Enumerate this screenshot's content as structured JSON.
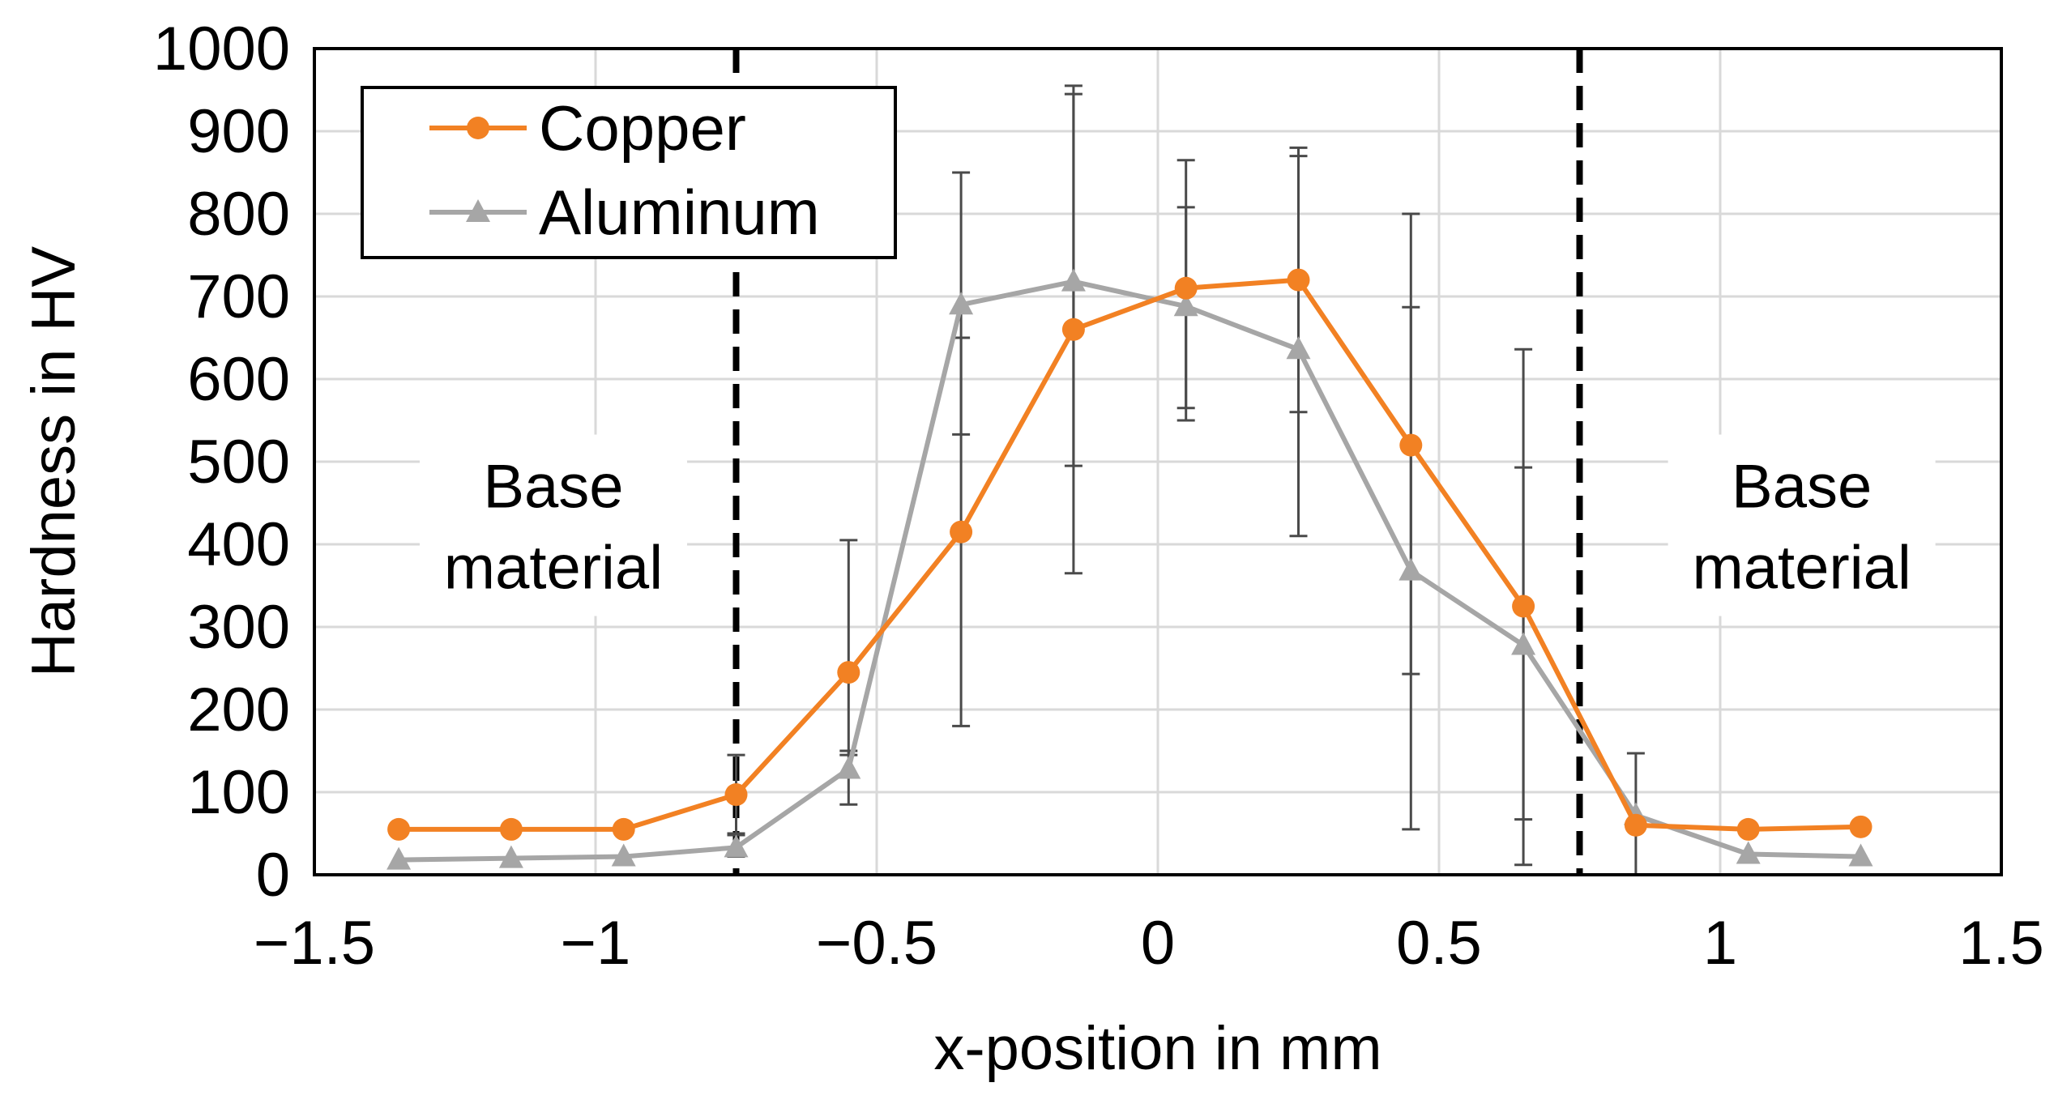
{
  "chart_data": {
    "type": "line",
    "title": "",
    "xlabel": "x-position in mm",
    "ylabel": "Hardness in HV",
    "xlim": [
      -1.5,
      1.5
    ],
    "ylim": [
      0,
      1000
    ],
    "xticks": [
      -1.5,
      -1,
      -0.5,
      0,
      0.5,
      1,
      1.5
    ],
    "xtick_labels": [
      "−1.5",
      "−1",
      "−0.5",
      "0",
      "0.5",
      "1",
      "1.5"
    ],
    "yticks": [
      0,
      100,
      200,
      300,
      400,
      500,
      600,
      700,
      800,
      900,
      1000
    ],
    "ytick_labels": [
      "0",
      "100",
      "200",
      "300",
      "400",
      "500",
      "600",
      "700",
      "800",
      "900",
      "1000"
    ],
    "grid": true,
    "legend_position": "top-left",
    "series": [
      {
        "name": "Copper",
        "color": "#f28123",
        "marker": "circle",
        "x": [
          -1.35,
          -1.15,
          -0.95,
          -0.75,
          -0.55,
          -0.35,
          -0.15,
          0.05,
          0.25,
          0.45,
          0.65,
          0.85,
          1.05,
          1.25
        ],
        "y": [
          55,
          55,
          55,
          97,
          245,
          415,
          660,
          710,
          720,
          520,
          325,
          60,
          55,
          58
        ],
        "err_low": [
          null,
          null,
          null,
          50,
          145,
          180,
          365,
          550,
          410,
          243,
          67,
          null,
          null,
          null
        ],
        "err_high": [
          null,
          null,
          null,
          145,
          405,
          650,
          955,
          865,
          880,
          800,
          493,
          null,
          null,
          null
        ]
      },
      {
        "name": "Aluminum",
        "color": "#a6a6a6",
        "marker": "triangle",
        "x": [
          -1.35,
          -1.15,
          -0.95,
          -0.75,
          -0.55,
          -0.35,
          -0.15,
          0.05,
          0.25,
          0.45,
          0.65,
          0.85,
          1.05,
          1.25
        ],
        "y": [
          18,
          20,
          22,
          33,
          128,
          690,
          718,
          688,
          636,
          368,
          278,
          72,
          25,
          22
        ],
        "err_low": [
          null,
          null,
          null,
          22,
          85,
          533,
          495,
          565,
          560,
          55,
          12,
          0,
          null,
          null
        ],
        "err_high": [
          null,
          null,
          null,
          48,
          150,
          850,
          945,
          808,
          870,
          687,
          636,
          147,
          null,
          null
        ]
      }
    ],
    "boundaries": [
      -0.75,
      0.75
    ],
    "annotations": [
      {
        "lines": [
          "Base",
          "material"
        ],
        "x": -1.075,
        "y": 423
      },
      {
        "lines": [
          "Base",
          "material"
        ],
        "x": 1.145,
        "y": 423
      }
    ]
  }
}
